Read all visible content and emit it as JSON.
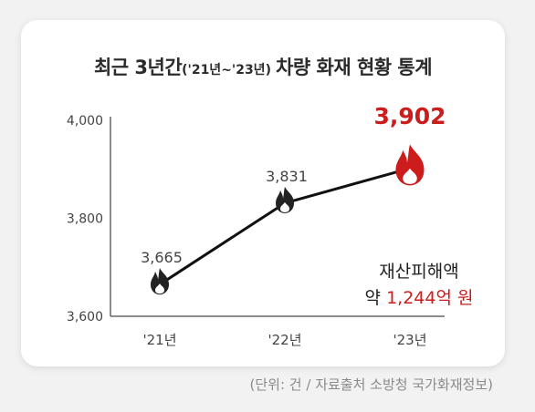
{
  "title": {
    "part1": "최근 3년간",
    "part2": "('21년~'23년)",
    "part3": "차량 화재 현황 통계"
  },
  "chart_data": {
    "type": "line",
    "categories": [
      "'21년",
      "'22년",
      "'23년"
    ],
    "values": [
      3665,
      3831,
      3902
    ],
    "value_labels": [
      "3,665",
      "3,831",
      "3,902"
    ],
    "ylim": [
      3600,
      4000
    ],
    "yticks": [
      3600,
      3800,
      4000
    ],
    "ytick_labels": [
      "3,600",
      "3,800",
      "4,000"
    ],
    "xlabel": "",
    "ylabel": "",
    "grid": false,
    "colors": {
      "line": "#111111",
      "marker": "#222222",
      "highlight": "#cc1c1c",
      "text": "#444444",
      "axis": "#666666"
    },
    "highlight_index": 2,
    "marker_icon": "fire-icon"
  },
  "annotation": {
    "label": "재산피해액",
    "prefix": "약",
    "amount": "1,244억 원"
  },
  "source": "(단위: 건  / 자료출처  소방청 국가화재정보)"
}
